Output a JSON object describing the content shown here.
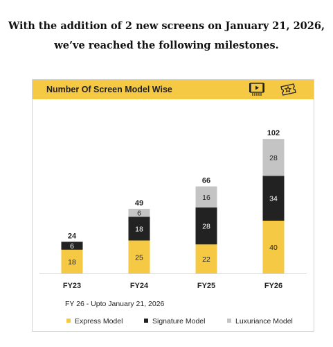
{
  "headline": {
    "line1": "With the addition of 2 new screens on January 21, 2026,",
    "line2": "we’ve reached the following milestones."
  },
  "icons": [
    "cinema-screen-icon",
    "ticket-star-icon"
  ],
  "colors": {
    "express": "#f6c945",
    "signature": "#222222",
    "luxuriance": "#c4c4c4",
    "header": "#f6c945"
  },
  "chart_data": {
    "type": "bar",
    "stacked": true,
    "title": "Number Of Screen Model Wise",
    "categories": [
      "FY23",
      "FY24",
      "FY25",
      "FY26"
    ],
    "series": [
      {
        "name": "Express Model",
        "values": [
          18,
          25,
          22,
          40
        ]
      },
      {
        "name": "Signature Model",
        "values": [
          6,
          18,
          28,
          34
        ]
      },
      {
        "name": "Luxuriance Model",
        "values": [
          0,
          6,
          16,
          28
        ]
      }
    ],
    "totals": [
      24,
      49,
      66,
      102
    ],
    "footnote": "FY 26 - Upto January  21, 2026",
    "legend_position": "bottom"
  }
}
